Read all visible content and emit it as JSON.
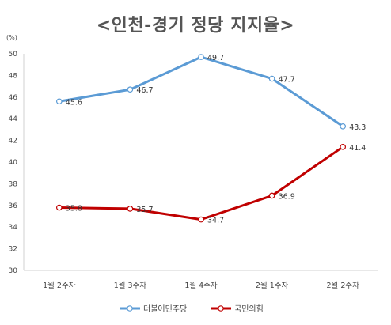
{
  "chart_data": {
    "type": "line",
    "title": "<인천-경기 정당 지지율>",
    "unit": "(%)",
    "categories": [
      "1월 2주차",
      "1월 3주차",
      "1월 4주차",
      "2월 1주차",
      "2월 2주차"
    ],
    "ylim": [
      30,
      50
    ],
    "yticks": [
      30,
      32,
      34,
      36,
      38,
      40,
      42,
      44,
      46,
      48,
      50
    ],
    "grid": false,
    "legend_position": "bottom",
    "series": [
      {
        "name": "더불어민주당",
        "color": "#5B9BD5",
        "values": [
          45.6,
          46.7,
          49.7,
          47.7,
          43.3
        ]
      },
      {
        "name": "국민의힘",
        "color": "#C00000",
        "values": [
          35.8,
          35.7,
          34.7,
          36.9,
          41.4
        ]
      }
    ]
  }
}
